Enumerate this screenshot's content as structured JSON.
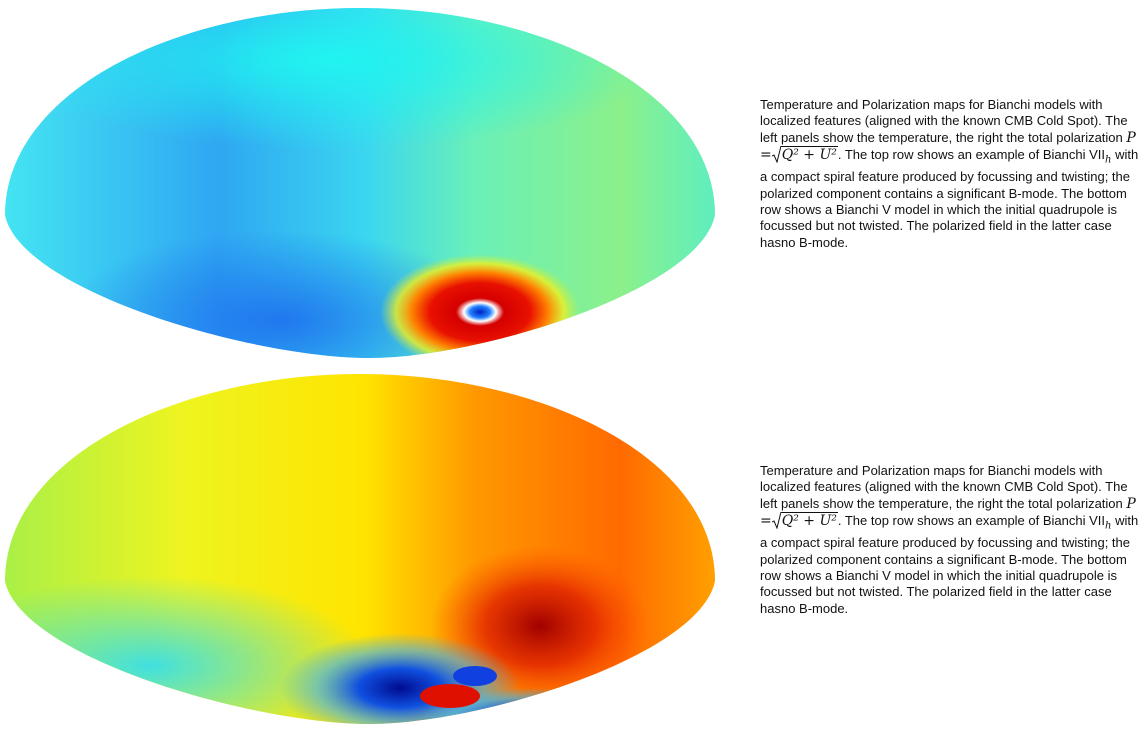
{
  "figures": [
    {
      "caption": {
        "text_before": "Temperature and Polarization maps for Bianchi models with localized features (aligned with the known CMB Cold Spot). The left panels show the temperature, the right the total polarization",
        "formula_lhs": "P =",
        "formula_radicand": "Q² + U²",
        "text_middle": ". The top row shows an example of Bianchi",
        "model": "VII",
        "model_subscript": "h",
        "text_after": "with a compact spiral feature produced by focussing and twisting; the polarized component contains a significant B-mode. The bottom row shows a Bianchi V model in which the initial quadrupole is focussed but not twisted. The polarized field in the latter case hasno B-mode."
      }
    },
    {
      "caption": {
        "text_before": "Temperature and Polarization maps for Bianchi models with localized features (aligned with the known CMB Cold Spot). The left panels show the temperature, the right the total polarization",
        "formula_lhs": "P =",
        "formula_radicand": "Q² + U²",
        "text_middle": ". The top row shows an example of Bianchi",
        "model": "VII",
        "model_subscript": "h",
        "text_after": "with a compact spiral feature produced by focussing and twisting; the polarized component contains a significant B-mode. The bottom row shows a Bianchi V model in which the initial quadrupole is focussed but not twisted. The polarized field in the latter case hasno B-mode."
      }
    }
  ]
}
